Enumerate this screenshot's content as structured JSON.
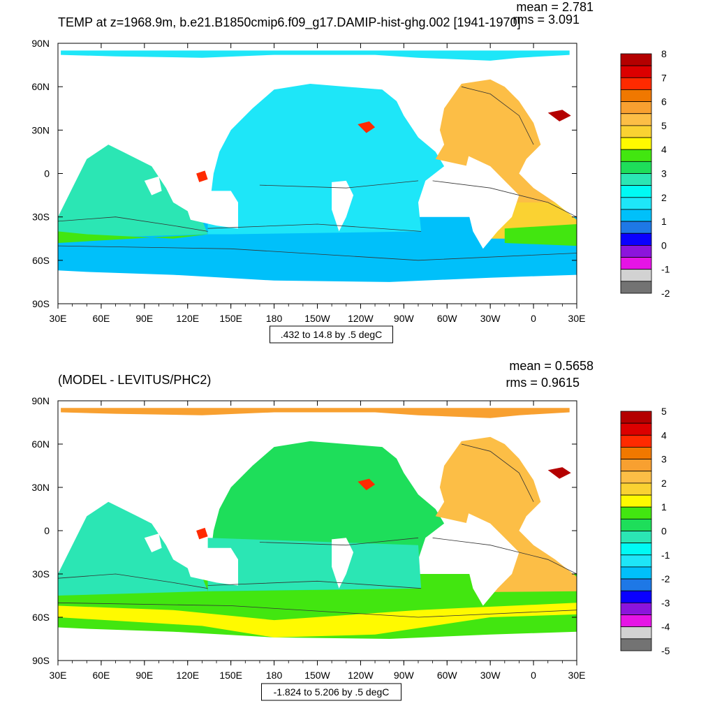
{
  "chart_data": [
    {
      "type": "heatmap",
      "title": "TEMP at z=1968.9m, b.e21.B1850cmip6.f09_g17.DAMIP-hist-ghg.002 [1941-1970]",
      "stats": {
        "mean": "mean = 2.781",
        "rms": "rms = 3.091"
      },
      "contour_info": ".432 to 14.8 by .5 degC",
      "x_ticks": [
        "30E",
        "60E",
        "90E",
        "120E",
        "150E",
        "180",
        "150W",
        "120W",
        "90W",
        "60W",
        "30W",
        "0",
        "30E"
      ],
      "y_ticks": [
        "90N",
        "60N",
        "30N",
        "0",
        "30S",
        "60S",
        "90S"
      ],
      "colorbar": {
        "labels": [
          "8",
          "7",
          "6",
          "5",
          "4",
          "3",
          "2",
          "1",
          "0",
          "-1",
          "-2"
        ],
        "colors": [
          "#b40000",
          "#dc0000",
          "#ff2a00",
          "#f07800",
          "#f8a030",
          "#fcbe46",
          "#fad232",
          "#fffa00",
          "#42e610",
          "#1ede5a",
          "#2be6b4",
          "#00faf4",
          "#1ee6f8",
          "#00c0fa",
          "#1e78e6",
          "#0a00ff",
          "#8c14dc",
          "#e614e6",
          "#d2d2d2",
          "#737373"
        ]
      },
      "colors": {
        "pacific": "#1ee6f8",
        "indian": "#2be6b4",
        "southern_band": "#00c0fa",
        "atlantic": "#fcbe46",
        "atlantic_south": "#fad232",
        "med": "#ff2a00",
        "hot": "#b40000",
        "green": "#42e610",
        "arctic": "#1ee6f8"
      }
    },
    {
      "type": "heatmap",
      "title": "(MODEL - LEVITUS/PHC2)",
      "stats": {
        "mean": "mean = 0.5658",
        "rms": "rms = 0.9615"
      },
      "contour_info": "-1.824 to 5.206 by .5 degC",
      "x_ticks": [
        "30E",
        "60E",
        "90E",
        "120E",
        "150E",
        "180",
        "150W",
        "120W",
        "90W",
        "60W",
        "30W",
        "0",
        "30E"
      ],
      "y_ticks": [
        "90N",
        "60N",
        "30N",
        "0",
        "30S",
        "60S",
        "90S"
      ],
      "colorbar": {
        "labels": [
          "5",
          "4",
          "3",
          "2",
          "1",
          "0",
          "-1",
          "-2",
          "-3",
          "-4",
          "-5"
        ],
        "colors": [
          "#b40000",
          "#dc0000",
          "#ff2a00",
          "#f07800",
          "#f8a030",
          "#fcbe46",
          "#fad232",
          "#fffa00",
          "#42e610",
          "#1ede5a",
          "#2be6b4",
          "#00faf4",
          "#1ee6f8",
          "#00c0fa",
          "#1e78e6",
          "#0a00ff",
          "#8c14dc",
          "#e614e6",
          "#d2d2d2",
          "#737373"
        ]
      },
      "colors": {
        "pacific": "#1ede5a",
        "pacific_south": "#2be6b4",
        "indian": "#2be6b4",
        "southern_band": "#42e610",
        "southern_yellow": "#fffa00",
        "atlantic": "#fcbe46",
        "atlantic_south": "#fcbe46",
        "med": "#ff2a00",
        "hot": "#b40000",
        "arctic": "#f8a030"
      }
    }
  ]
}
